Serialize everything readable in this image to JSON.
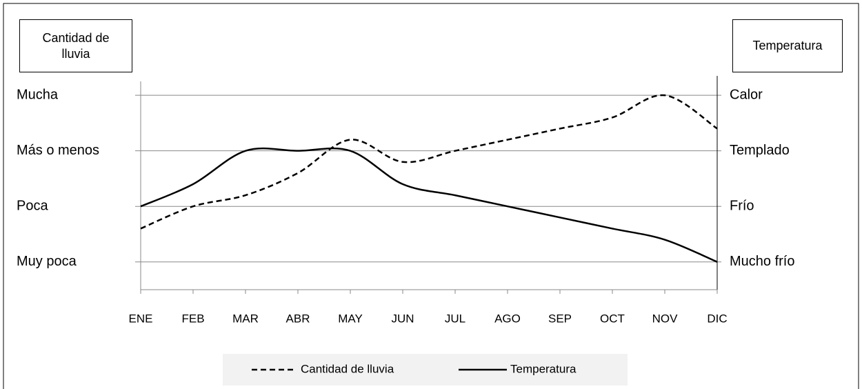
{
  "chart_data": {
    "type": "line",
    "y_label": "Cantidad de lluvia",
    "y2_label": "Temperatura",
    "categories": [
      "ENE",
      "FEB",
      "MAR",
      "ABR",
      "MAY",
      "JUN",
      "JUL",
      "AGO",
      "SEP",
      "OCT",
      "NOV",
      "DIC"
    ],
    "series": [
      {
        "name": "Cantidad de lluvia",
        "color": "#000000",
        "dash": "dashed",
        "axis": "y",
        "values": [
          1.6,
          2.0,
          2.2,
          2.6,
          3.2,
          2.8,
          3.0,
          3.2,
          3.4,
          3.6,
          4.0,
          3.4
        ]
      },
      {
        "name": "Temperatura",
        "color": "#000000",
        "dash": "solid",
        "axis": "y2",
        "values": [
          2.0,
          2.4,
          3.0,
          3.0,
          3.0,
          2.4,
          2.2,
          2.0,
          1.8,
          1.6,
          1.4,
          1.0
        ]
      }
    ],
    "ylim": [
      0.5,
      4.25
    ],
    "yticks": [
      {
        "value": 1,
        "label": "Muy poca"
      },
      {
        "value": 2,
        "label": "Poca"
      },
      {
        "value": 3,
        "label": "Más o menos"
      },
      {
        "value": 4,
        "label": "Mucha"
      }
    ],
    "y2lim": [
      0.5,
      4.25
    ],
    "y2ticks": [
      {
        "value": 1,
        "label": "Mucho frío"
      },
      {
        "value": 2,
        "label": "Frío"
      },
      {
        "value": 3,
        "label": "Templado"
      },
      {
        "value": 4,
        "label": "Calor"
      }
    ],
    "grid": true,
    "legend": "bottom"
  }
}
